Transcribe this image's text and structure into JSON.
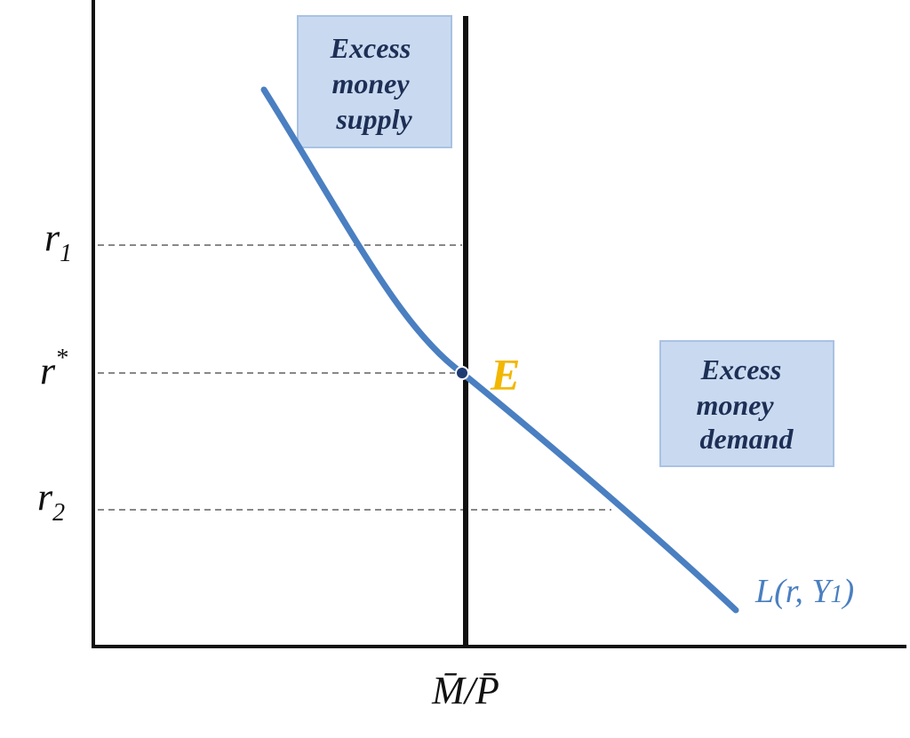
{
  "diagram": {
    "axis_labels": {
      "y_levels": [
        {
          "base": "r",
          "sub": "1"
        },
        {
          "base": "r",
          "sup": "*"
        },
        {
          "base": "r",
          "sub": "2"
        }
      ],
      "x": "M̄/P̄"
    },
    "equilibrium_label": "E",
    "curve_label": {
      "main": "L(r, Y",
      "sub": "1",
      "end": ")"
    },
    "boxes": [
      {
        "lines": [
          "Excess",
          "money",
          "supply"
        ]
      },
      {
        "lines": [
          "Excess",
          "money",
          "demand"
        ]
      }
    ]
  }
}
